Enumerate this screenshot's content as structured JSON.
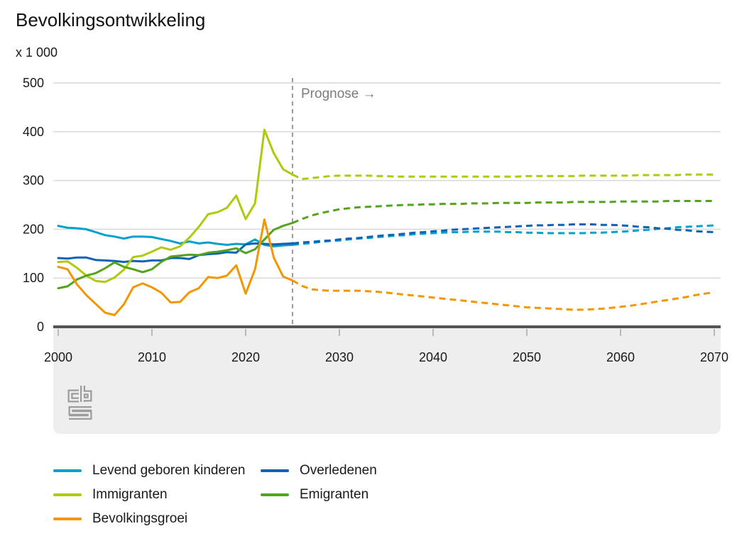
{
  "chart_data": {
    "type": "line",
    "title": "Bevolkingsontwikkeling",
    "unit_label": "x 1 000",
    "prognose_label": "Prognose →",
    "xlabel": "",
    "ylabel": "x 1 000",
    "ylim": [
      0,
      500
    ],
    "grid": true,
    "legend_position": "bottom",
    "x_start_year": 2000,
    "x_end_year": 2070,
    "forecast_start_year": 2025,
    "x_ticks": [
      2000,
      2010,
      2020,
      2030,
      2040,
      2050,
      2060,
      2070
    ],
    "y_ticks": [
      0,
      100,
      200,
      300,
      400,
      500
    ],
    "series": [
      {
        "name": "Levend geboren kinderen",
        "color": "#00a1cd",
        "values": [
          207,
          203,
          202,
          200,
          194,
          188,
          185,
          181,
          185,
          185,
          184,
          180,
          176,
          171,
          175,
          171,
          173,
          170,
          168,
          170,
          169,
          179,
          168,
          165,
          167,
          168,
          170,
          172,
          174,
          176,
          177,
          179,
          181,
          182,
          184,
          185,
          187,
          188,
          190,
          191,
          192,
          193,
          194,
          194,
          195,
          195,
          195,
          195,
          194,
          194,
          193,
          193,
          192,
          192,
          192,
          192,
          192,
          193,
          193,
          194,
          195,
          196,
          198,
          199,
          201,
          202,
          204,
          205,
          206,
          207,
          208
        ]
      },
      {
        "name": "Overledenen",
        "color": "#0f62b4",
        "values": [
          141,
          140,
          142,
          142,
          137,
          136,
          135,
          133,
          135,
          134,
          136,
          136,
          141,
          141,
          139,
          147,
          149,
          150,
          153,
          152,
          169,
          171,
          170,
          169,
          170,
          171,
          173,
          174,
          176,
          177,
          179,
          181,
          182,
          184,
          186,
          188,
          189,
          191,
          193,
          194,
          196,
          197,
          199,
          200,
          201,
          202,
          203,
          204,
          205,
          206,
          207,
          208,
          208,
          209,
          209,
          210,
          210,
          210,
          209,
          209,
          208,
          207,
          205,
          204,
          202,
          201,
          199,
          198,
          196,
          195,
          194
        ]
      },
      {
        "name": "Immigranten",
        "color": "#afca0b",
        "values": [
          133,
          134,
          121,
          105,
          94,
          92,
          101,
          117,
          143,
          146,
          154,
          163,
          158,
          165,
          183,
          205,
          231,
          235,
          244,
          269,
          221,
          253,
          404,
          356,
          323,
          312,
          303,
          305,
          307,
          309,
          310,
          310,
          310,
          310,
          309,
          309,
          308,
          308,
          308,
          308,
          308,
          308,
          308,
          308,
          308,
          308,
          308,
          308,
          308,
          308,
          309,
          309,
          309,
          309,
          309,
          309,
          310,
          310,
          310,
          310,
          310,
          310,
          311,
          311,
          311,
          311,
          311,
          312,
          312,
          312,
          312
        ]
      },
      {
        "name": "Emigranten",
        "color": "#53a31d",
        "values": [
          79,
          83,
          97,
          105,
          110,
          120,
          132,
          123,
          118,
          112,
          118,
          133,
          144,
          146,
          148,
          147,
          152,
          154,
          157,
          161,
          151,
          159,
          179,
          199,
          207,
          213,
          221,
          228,
          233,
          237,
          241,
          243,
          245,
          246,
          247,
          248,
          249,
          250,
          250,
          251,
          251,
          252,
          252,
          252,
          253,
          253,
          253,
          254,
          254,
          254,
          254,
          255,
          255,
          255,
          255,
          256,
          256,
          256,
          256,
          256,
          257,
          257,
          257,
          257,
          257,
          258,
          258,
          258,
          258,
          258,
          258
        ]
      },
      {
        "name": "Bevolkingsgroei",
        "color": "#f49600",
        "values": [
          123,
          118,
          87,
          65,
          47,
          29,
          24,
          46,
          81,
          89,
          81,
          70,
          50,
          51,
          71,
          79,
          102,
          100,
          105,
          126,
          68,
          118,
          220,
          142,
          103,
          95,
          84,
          77,
          75,
          74,
          74,
          74,
          74,
          73,
          72,
          70,
          68,
          66,
          64,
          62,
          60,
          58,
          56,
          54,
          52,
          50,
          48,
          46,
          44,
          42,
          40,
          39,
          38,
          37,
          36,
          35,
          35,
          36,
          37,
          39,
          41,
          43,
          46,
          49,
          52,
          55,
          58,
          61,
          65,
          68,
          71
        ]
      }
    ]
  }
}
